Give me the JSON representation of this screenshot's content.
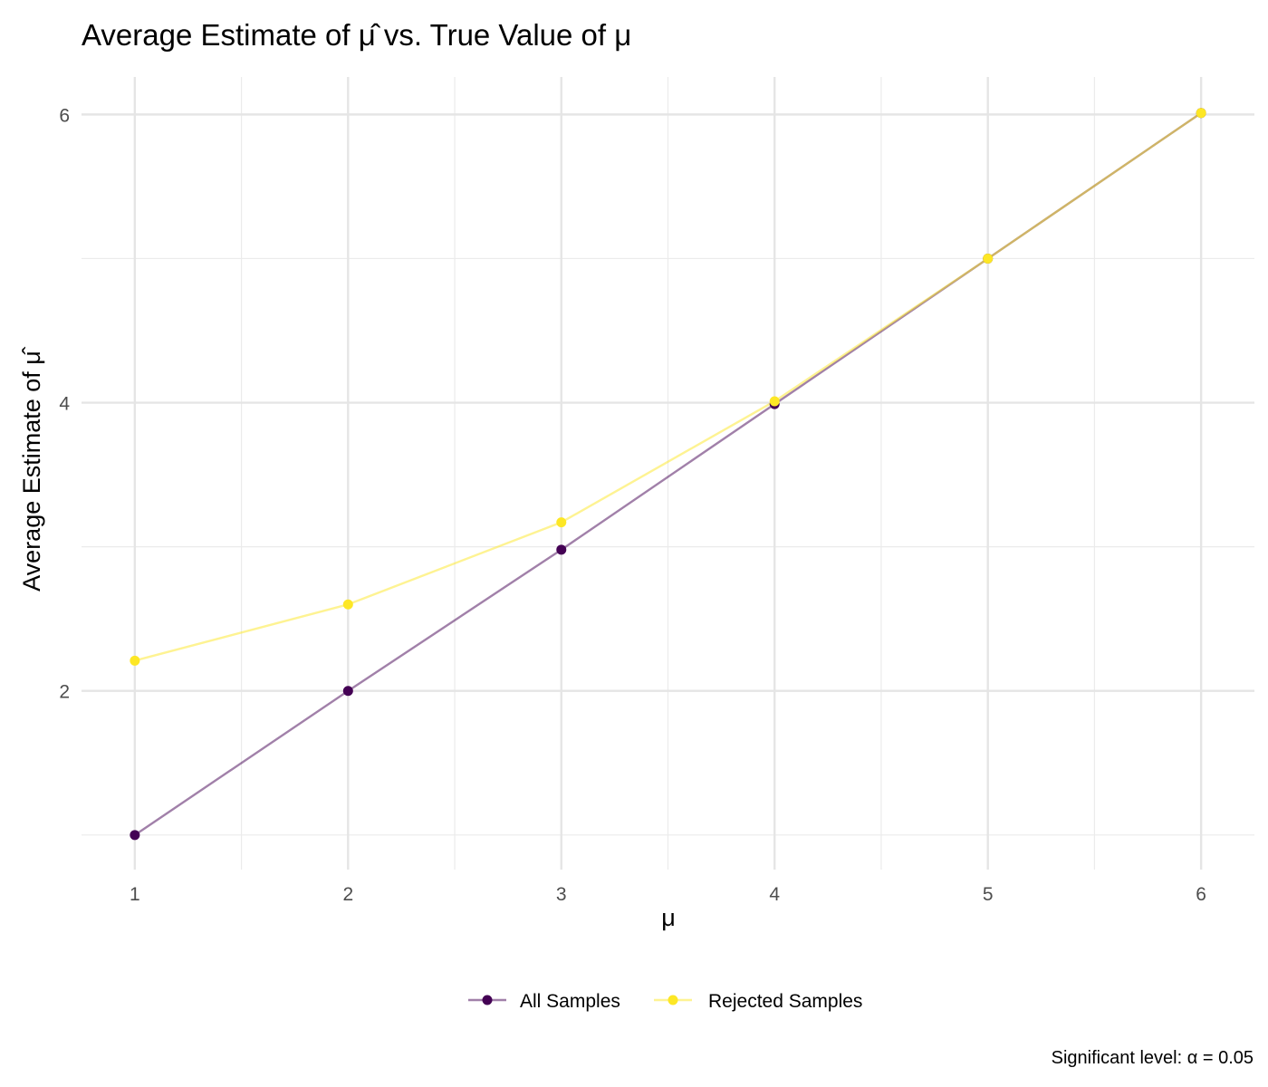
{
  "chart_data": {
    "type": "line",
    "title": "Average Estimate of μ̂ vs. True Value of μ",
    "xlabel": "μ",
    "ylabel": "Average Estimate of μ̂",
    "x": [
      1,
      2,
      3,
      4,
      5,
      6
    ],
    "xlim": [
      0.75,
      6.25
    ],
    "ylim": [
      0.76,
      6.26
    ],
    "x_ticks": [
      "1",
      "2",
      "3",
      "4",
      "5",
      "6"
    ],
    "y_ticks": [
      "2",
      "4",
      "6"
    ],
    "grid": true,
    "legend_position": "bottom",
    "caption": "Significant level: α = 0.05",
    "series": [
      {
        "name": "All Samples",
        "color": "#440154",
        "values": [
          1.0,
          2.0,
          2.98,
          3.99,
          5.0,
          6.01
        ]
      },
      {
        "name": "Rejected Samples",
        "color": "#FDE725",
        "values": [
          2.21,
          2.6,
          3.17,
          4.01,
          5.0,
          6.01
        ]
      }
    ]
  }
}
